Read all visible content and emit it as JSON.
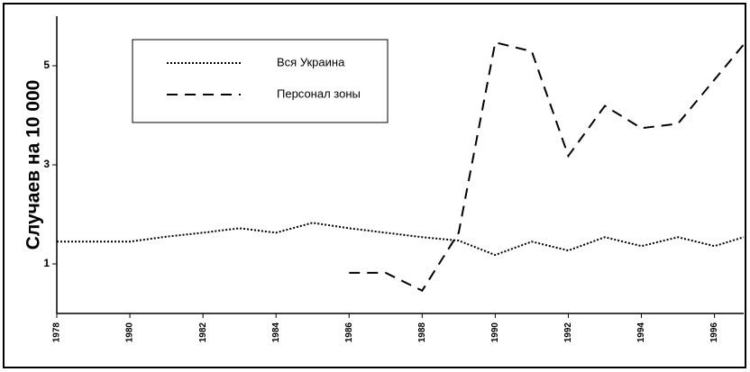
{
  "chart_data": {
    "type": "line",
    "ylabel": "Случаев на 10 000",
    "xlim": [
      1978,
      1996.8
    ],
    "xticks": [
      1978,
      1980,
      1982,
      1984,
      1986,
      1988,
      1990,
      1992,
      1994,
      1996
    ],
    "ylim": [
      0,
      6
    ],
    "yticks": [
      1,
      3,
      5
    ],
    "legend": "upper left",
    "series": [
      {
        "name": "Вся Украина",
        "color": "#000000",
        "style": "dotted",
        "x": [
          1978,
          1979,
          1980,
          1981,
          1982,
          1983,
          1984,
          1985,
          1986,
          1987,
          1988,
          1989,
          1990,
          1991,
          1992,
          1993,
          1994,
          1995,
          1996,
          1996.8
        ],
        "values": [
          1.45,
          1.45,
          1.45,
          1.55,
          1.63,
          1.72,
          1.63,
          1.83,
          1.72,
          1.63,
          1.54,
          1.47,
          1.18,
          1.45,
          1.27,
          1.54,
          1.36,
          1.54,
          1.36,
          1.54
        ]
      },
      {
        "name": "Персонал зоны",
        "color": "#000000",
        "style": "dashed",
        "x": [
          1986,
          1987,
          1988,
          1989,
          1990,
          1991,
          1992,
          1993,
          1994,
          1995,
          1996.8
        ],
        "values": [
          0.82,
          0.82,
          0.46,
          1.63,
          5.47,
          5.29,
          3.18,
          4.19,
          3.74,
          3.83,
          5.43
        ]
      }
    ]
  }
}
